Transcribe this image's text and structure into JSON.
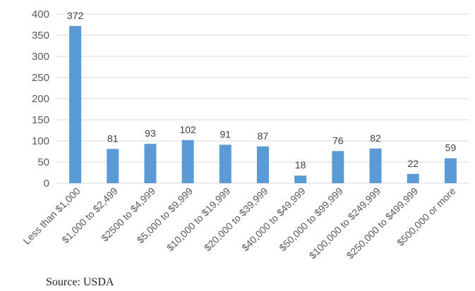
{
  "chart_data": {
    "type": "bar",
    "title": "",
    "xlabel": "",
    "ylabel": "",
    "ylim": [
      0,
      400
    ],
    "yticks": [
      0,
      50,
      100,
      150,
      200,
      250,
      300,
      350,
      400
    ],
    "grid": true,
    "legend": "none",
    "bar_color": "#5b9bd5",
    "categories": [
      "Less than $1,000",
      "$1,000 to $2,499",
      "$2500 to $4,999",
      "$5,000 to $9,999",
      "$10,000 to $19,999",
      "$20,000 to $39,999",
      "$40,000 to $49,999",
      "$50,000 to $99,999",
      "$100,000 to $249,999",
      "$250,000 to $499,999",
      "$500,000 or more"
    ],
    "values": [
      372,
      81,
      93,
      102,
      91,
      87,
      18,
      76,
      82,
      22,
      59
    ]
  },
  "source": "Source: USDA"
}
